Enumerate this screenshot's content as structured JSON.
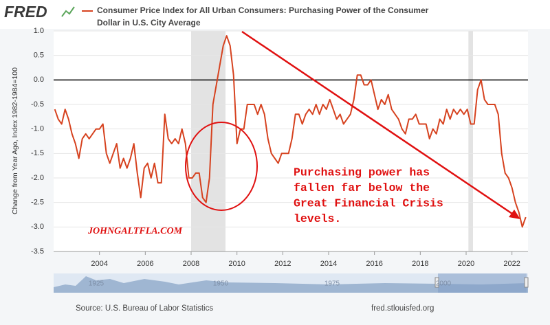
{
  "brand": "FRED",
  "chart_data": {
    "type": "line",
    "title_lines": [
      "Consumer Price Index for All Urban Consumers: Purchasing Power of the Consumer",
      "Dollar in U.S. City Average"
    ],
    "y_label": "Change from Year Ago, Index 1982-1984=100",
    "color": "#d6421f",
    "x": [
      2002.05,
      2002.2,
      2002.35,
      2002.5,
      2002.65,
      2002.8,
      2002.95,
      2003.1,
      2003.25,
      2003.4,
      2003.55,
      2003.7,
      2003.85,
      2004,
      2004.15,
      2004.3,
      2004.45,
      2004.6,
      2004.75,
      2004.9,
      2005.05,
      2005.2,
      2005.35,
      2005.5,
      2005.65,
      2005.8,
      2005.95,
      2006.1,
      2006.25,
      2006.4,
      2006.55,
      2006.7,
      2006.85,
      2007,
      2007.15,
      2007.3,
      2007.45,
      2007.6,
      2007.75,
      2007.9,
      2008.05,
      2008.2,
      2008.35,
      2008.5,
      2008.65,
      2008.8,
      2008.95,
      2009.1,
      2009.25,
      2009.4,
      2009.55,
      2009.7,
      2009.85,
      2010,
      2010.15,
      2010.3,
      2010.45,
      2010.6,
      2010.75,
      2010.9,
      2011.05,
      2011.2,
      2011.35,
      2011.5,
      2011.65,
      2011.8,
      2011.95,
      2012.1,
      2012.25,
      2012.4,
      2012.55,
      2012.7,
      2012.85,
      2013,
      2013.15,
      2013.3,
      2013.45,
      2013.6,
      2013.75,
      2013.9,
      2014.05,
      2014.2,
      2014.35,
      2014.5,
      2014.65,
      2014.8,
      2014.95,
      2015.1,
      2015.25,
      2015.4,
      2015.55,
      2015.7,
      2015.85,
      2016,
      2016.15,
      2016.3,
      2016.45,
      2016.6,
      2016.75,
      2016.9,
      2017.05,
      2017.2,
      2017.35,
      2017.5,
      2017.65,
      2017.8,
      2017.95,
      2018.1,
      2018.25,
      2018.4,
      2018.55,
      2018.7,
      2018.85,
      2019,
      2019.15,
      2019.3,
      2019.45,
      2019.6,
      2019.75,
      2019.9,
      2020.05,
      2020.2,
      2020.35,
      2020.5,
      2020.65,
      2020.8,
      2020.95,
      2021.1,
      2021.25,
      2021.4,
      2021.55,
      2021.7,
      2021.85,
      2022,
      2022.15,
      2022.3,
      2022.45,
      2022.6
    ],
    "values": [
      -0.6,
      -0.8,
      -0.9,
      -0.6,
      -0.8,
      -1.1,
      -1.3,
      -1.6,
      -1.2,
      -1.1,
      -1.2,
      -1.1,
      -1.0,
      -1.0,
      -0.9,
      -1.5,
      -1.7,
      -1.5,
      -1.3,
      -1.8,
      -1.6,
      -1.8,
      -1.6,
      -1.3,
      -1.9,
      -2.4,
      -1.8,
      -1.7,
      -2.0,
      -1.7,
      -2.1,
      -2.1,
      -0.7,
      -1.2,
      -1.3,
      -1.2,
      -1.3,
      -1.0,
      -1.3,
      -2.0,
      -2.0,
      -1.9,
      -1.9,
      -2.4,
      -2.5,
      -2.0,
      -0.5,
      -0.1,
      0.3,
      0.7,
      0.9,
      0.7,
      0.1,
      -1.3,
      -1.0,
      -1.0,
      -0.5,
      -0.5,
      -0.5,
      -0.7,
      -0.5,
      -0.7,
      -1.2,
      -1.5,
      -1.6,
      -1.7,
      -1.5,
      -1.5,
      -1.5,
      -1.2,
      -0.7,
      -0.7,
      -0.9,
      -0.7,
      -0.6,
      -0.7,
      -0.5,
      -0.7,
      -0.5,
      -0.6,
      -0.4,
      -0.6,
      -0.8,
      -0.7,
      -0.9,
      -0.8,
      -0.7,
      -0.4,
      0.1,
      0.1,
      -0.1,
      -0.1,
      0.0,
      -0.3,
      -0.6,
      -0.4,
      -0.5,
      -0.3,
      -0.6,
      -0.7,
      -0.8,
      -1.0,
      -1.1,
      -0.8,
      -0.8,
      -0.7,
      -0.9,
      -0.9,
      -0.9,
      -1.2,
      -1.0,
      -1.1,
      -0.8,
      -0.9,
      -0.6,
      -0.8,
      -0.6,
      -0.7,
      -0.6,
      -0.7,
      -0.6,
      -0.9,
      -0.9,
      -0.2,
      0.0,
      -0.4,
      -0.5,
      -0.5,
      -0.5,
      -0.7,
      -1.5,
      -1.9,
      -2.0,
      -2.2,
      -2.5,
      -2.7,
      -3.0,
      -2.8
    ],
    "xlim": [
      2002,
      2022.7
    ],
    "xticks": [
      2004,
      2006,
      2008,
      2010,
      2012,
      2014,
      2016,
      2018,
      2020,
      2022
    ],
    "ylim": [
      -3.5,
      1.0
    ],
    "yticks": [
      {
        "value": 1.0,
        "label": "1.0"
      },
      0.5,
      {
        "value": 0,
        "label": "0.0"
      },
      -0.5,
      {
        "value": -1.0,
        "label": "-1.0"
      },
      -1.5,
      {
        "value": -2.0,
        "label": "-2.0"
      },
      -2.5,
      {
        "value": -3.0,
        "label": "-3.0"
      },
      -3.5
    ],
    "grid": true,
    "recessions": [
      [
        2008.0,
        2009.5
      ],
      [
        2020.1,
        2020.3
      ]
    ],
    "annotation_lines": [
      "Purchasing power has",
      "fallen far below the",
      "Great Financial Crisis",
      "levels."
    ],
    "watermark": "JOHNGALTFLA.COM"
  },
  "navigator": {
    "labels": [
      "1925",
      "1950",
      "1975",
      "2000"
    ]
  },
  "footer": {
    "source": "Source: U.S. Bureau of Labor Statistics",
    "site": "fred.stlouisfed.org"
  }
}
